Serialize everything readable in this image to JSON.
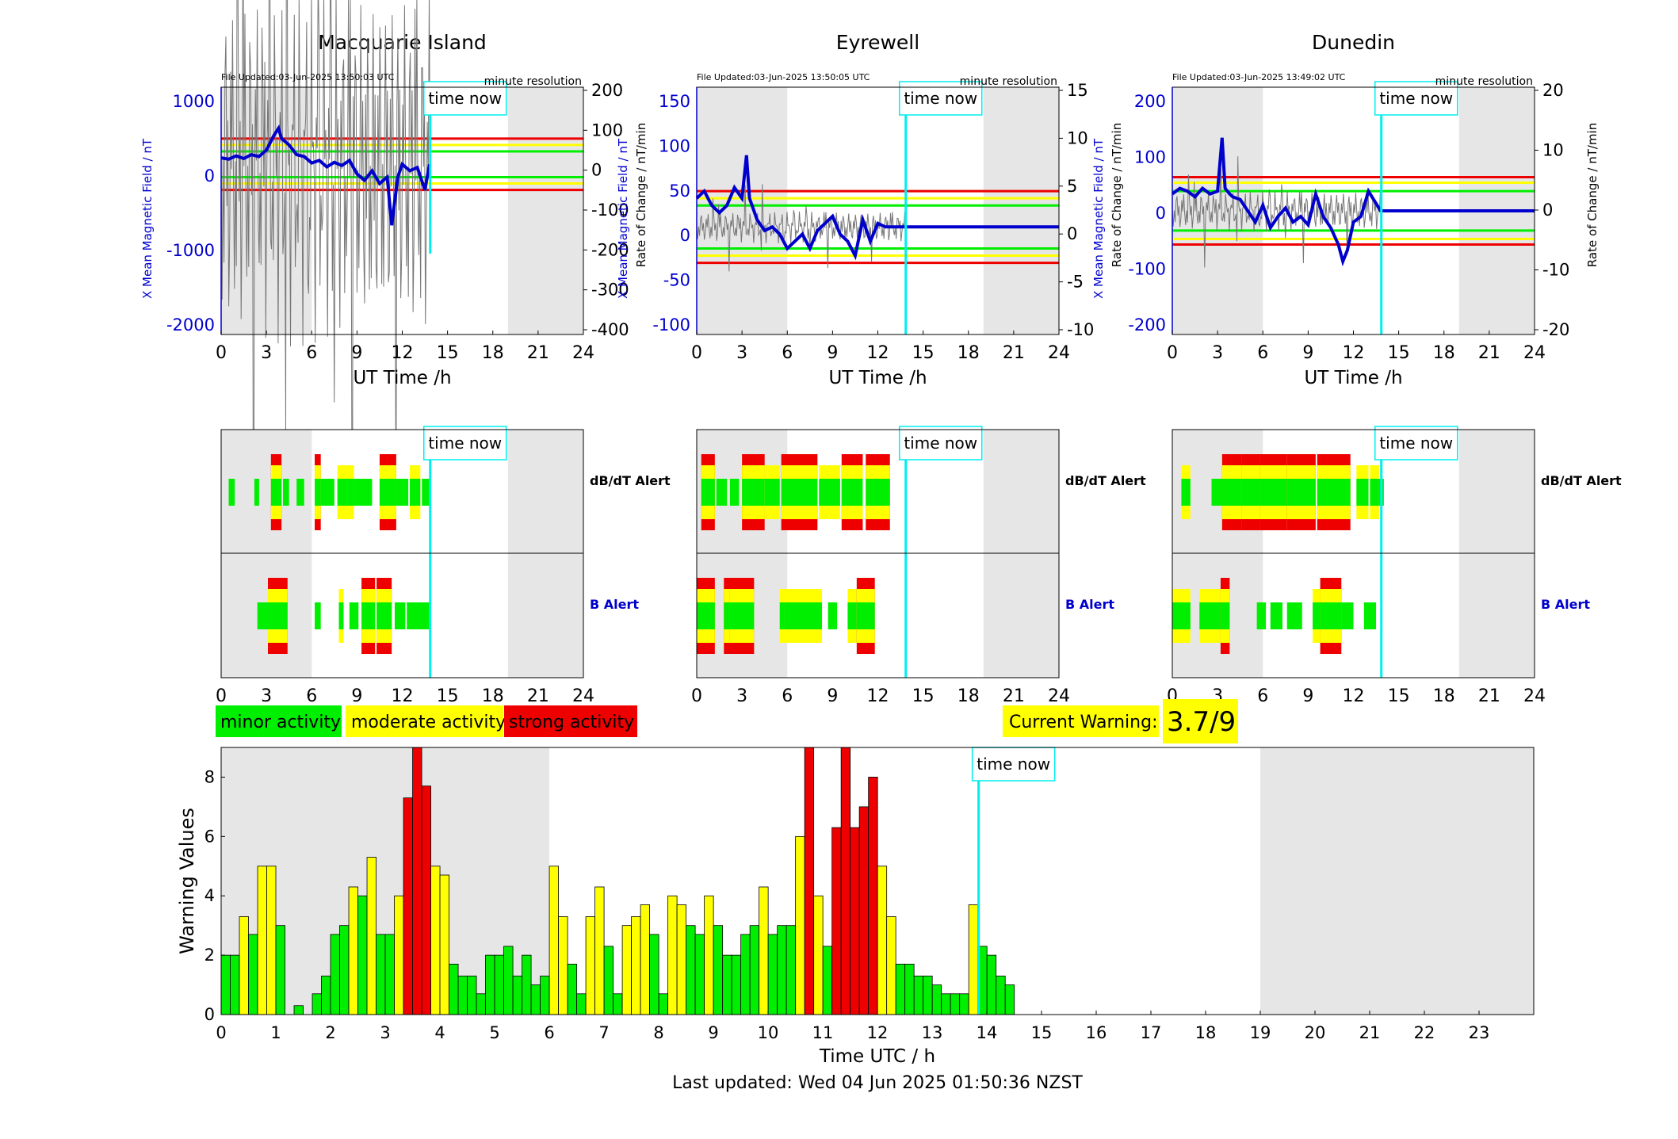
{
  "colors": {
    "minor": "#00ee00",
    "moderate": "#ffff00",
    "strong": "#ee0000",
    "field_line": "#0000cc",
    "time_now": "#00eeee",
    "night_shade": "#e6e6e6",
    "axis": "#000000"
  },
  "stations": [
    {
      "name": "Macquarie Island",
      "file_updated": "File Updated:03-Jun-2025 13:50:03 UTC",
      "resolution": "minute resolution",
      "left_ylabel": "X Mean Magnetic Field / nT",
      "right_ylabel": "Rate of Change / nT/min",
      "xlabel": "UT Time /h",
      "left_yticks": [
        "1000",
        "0",
        "-1000",
        "-2000"
      ],
      "right_yticks": [
        "200",
        "100",
        "0",
        "-100",
        "-200",
        "-300",
        "-400"
      ]
    },
    {
      "name": "Eyrewell",
      "file_updated": "File Updated:03-Jun-2025 13:50:05 UTC",
      "resolution": "minute resolution",
      "left_ylabel": "X Mean Magnetic Field / nT",
      "right_ylabel": "Rate of Change / nT/min",
      "xlabel": "UT Time /h",
      "left_yticks": [
        "150",
        "100",
        "50",
        "0",
        "-50",
        "-100"
      ],
      "right_yticks": [
        "15",
        "10",
        "5",
        "0",
        "-5",
        "-10"
      ]
    },
    {
      "name": "Dunedin",
      "file_updated": "File Updated:03-Jun-2025 13:49:02 UTC",
      "resolution": "minute resolution",
      "left_ylabel": "X Mean Magnetic Field / nT",
      "right_ylabel": "Rate of Change / nT/min",
      "xlabel": "UT Time /h",
      "left_yticks": [
        "200",
        "100",
        "0",
        "-100",
        "-200"
      ],
      "right_yticks": [
        "20",
        "10",
        "0",
        "-10",
        "-20"
      ]
    }
  ],
  "hour_ticks": [
    "0",
    "3",
    "6",
    "9",
    "12",
    "15",
    "18",
    "21",
    "24"
  ],
  "time_now_label": "time now",
  "alert_labels": {
    "dbdt": "dB/dT Alert",
    "b": "B Alert"
  },
  "legend": {
    "minor": "minor activity",
    "moderate": "moderate activity",
    "strong": "strong activity"
  },
  "current_warning": {
    "label": "Current Warning:",
    "value": "3.7/9"
  },
  "bottom": {
    "ylabel": "Warning Values",
    "xlabel": "Time UTC / h",
    "yticks": [
      "0",
      "2",
      "4",
      "6",
      "8"
    ],
    "xticks": [
      "0",
      "1",
      "2",
      "3",
      "4",
      "5",
      "6",
      "7",
      "8",
      "9",
      "10",
      "11",
      "12",
      "13",
      "14",
      "15",
      "16",
      "17",
      "18",
      "19",
      "20",
      "21",
      "22",
      "23"
    ]
  },
  "footer": "Last updated: Wed 04 Jun 2025 01:50:36 NZST",
  "chart_data": [
    {
      "type": "line",
      "title": "Macquarie Island",
      "xlabel": "UT Time /h",
      "ylabel": "X Mean Magnetic Field / nT",
      "y2label": "Rate of Change / nT/min",
      "xlim": [
        0,
        24
      ],
      "ylim": [
        -2650,
        1200
      ],
      "y2lim": [
        -440,
        200
      ],
      "time_now": 13.85,
      "night_shading": [
        [
          0,
          6
        ],
        [
          19,
          24
        ]
      ],
      "threshold_field": {
        "green": 200,
        "yellow": 300,
        "red": 400
      },
      "x": [
        0,
        0.5,
        1,
        1.5,
        2,
        2.5,
        3,
        3.5,
        3.8,
        4,
        4.5,
        5,
        5.5,
        6,
        6.5,
        7,
        7.5,
        8,
        8.5,
        9,
        9.5,
        10,
        10.5,
        11,
        11.3,
        11.7,
        12,
        12.5,
        13,
        13.5,
        13.8
      ],
      "field": [
        100,
        80,
        130,
        90,
        150,
        120,
        220,
        450,
        560,
        400,
        300,
        150,
        120,
        20,
        60,
        -40,
        30,
        -20,
        60,
        -150,
        -250,
        -100,
        -300,
        -200,
        -950,
        -200,
        0,
        -100,
        -50,
        -400,
        0
      ]
    },
    {
      "type": "line",
      "title": "Eyrewell",
      "xlabel": "UT Time /h",
      "ylabel": "X Mean Magnetic Field / nT",
      "y2label": "Rate of Change / nT/min",
      "xlim": [
        0,
        24
      ],
      "ylim": [
        -150,
        195
      ],
      "y2lim": [
        -15,
        19.5
      ],
      "time_now": 13.85,
      "night_shading": [
        [
          0,
          6
        ],
        [
          19,
          24
        ]
      ],
      "threshold_field": {
        "green": 30,
        "yellow": 40,
        "red": 50
      },
      "x": [
        0,
        0.5,
        1,
        1.5,
        2,
        2.5,
        3,
        3.3,
        3.5,
        4,
        4.5,
        5,
        5.5,
        6,
        6.5,
        7,
        7.5,
        8,
        8.5,
        9,
        9.5,
        10,
        10.5,
        11,
        11.5,
        12,
        12.5,
        13,
        13.8,
        24
      ],
      "field": [
        40,
        50,
        30,
        20,
        30,
        55,
        40,
        100,
        40,
        10,
        -5,
        0,
        -10,
        -30,
        -20,
        -10,
        -30,
        -5,
        5,
        15,
        -10,
        -20,
        -40,
        10,
        -20,
        5,
        0,
        0,
        0,
        0
      ],
      "series_after_now": 0
    },
    {
      "type": "line",
      "title": "Dunedin",
      "xlabel": "UT Time /h",
      "ylabel": "X Mean Magnetic Field / nT",
      "y2label": "Rate of Change / nT/min",
      "xlim": [
        0,
        24
      ],
      "ylim": [
        -220,
        220
      ],
      "y2lim": [
        -22,
        22
      ],
      "time_now": 13.85,
      "night_shading": [
        [
          0,
          6
        ],
        [
          19,
          24
        ]
      ],
      "threshold_field": {
        "green": 35,
        "yellow": 50,
        "red": 60
      },
      "x": [
        0,
        0.5,
        1,
        1.5,
        2,
        2.5,
        3,
        3.3,
        3.5,
        3.8,
        4,
        4.5,
        5,
        5.5,
        6,
        6.5,
        7,
        7.5,
        8,
        8.5,
        9,
        9.5,
        10,
        10.5,
        11,
        11.3,
        11.6,
        12,
        12.5,
        13,
        13.8,
        24
      ],
      "field": [
        30,
        40,
        35,
        25,
        40,
        30,
        35,
        130,
        40,
        30,
        25,
        20,
        0,
        -20,
        10,
        -30,
        -10,
        5,
        -20,
        -10,
        -25,
        30,
        -10,
        -30,
        -60,
        -90,
        -70,
        -20,
        -10,
        35,
        0,
        0
      ],
      "series_after_now": 0
    },
    {
      "type": "bar",
      "title": "",
      "xlabel": "Time UTC / h",
      "ylabel": "Warning Values",
      "xlim": [
        0,
        24
      ],
      "ylim": [
        0,
        9
      ],
      "time_now": 13.85,
      "night_shading": [
        [
          0,
          6
        ],
        [
          19,
          24
        ]
      ],
      "bin_width_h": 0.1667,
      "values": [
        2,
        2,
        3.3,
        2.7,
        5,
        5,
        3,
        0,
        0.3,
        0,
        0.7,
        1.3,
        2.7,
        3,
        4.3,
        4,
        5.3,
        2.7,
        2.7,
        4,
        7.3,
        9,
        7.7,
        5,
        4.7,
        1.7,
        1.3,
        1.3,
        0.7,
        2,
        2,
        2.3,
        1.3,
        2,
        1,
        1.3,
        5,
        3.3,
        1.7,
        0.7,
        3.3,
        4.3,
        2.3,
        0.7,
        3,
        3.3,
        3.7,
        2.7,
        0.7,
        4,
        3.7,
        3,
        2.7,
        4,
        3,
        2,
        2,
        2.7,
        3,
        4.3,
        2.7,
        3,
        3,
        6,
        10.3,
        4,
        2.3,
        6.3,
        9,
        6.3,
        7,
        8,
        5,
        3.3,
        1.7,
        1.7,
        1.3,
        1.3,
        1,
        0.7,
        0.7,
        0.7,
        3.7,
        2.3,
        2,
        1.3,
        1
      ],
      "levels": [
        "g",
        "g",
        "y",
        "g",
        "y",
        "y",
        "g",
        "g",
        "g",
        "g",
        "g",
        "g",
        "g",
        "g",
        "y",
        "g",
        "y",
        "g",
        "g",
        "y",
        "r",
        "r",
        "r",
        "y",
        "y",
        "g",
        "g",
        "g",
        "g",
        "g",
        "g",
        "g",
        "g",
        "g",
        "g",
        "g",
        "y",
        "y",
        "g",
        "g",
        "y",
        "y",
        "g",
        "g",
        "y",
        "y",
        "y",
        "g",
        "g",
        "y",
        "y",
        "g",
        "g",
        "y",
        "g",
        "g",
        "g",
        "g",
        "g",
        "y",
        "g",
        "g",
        "g",
        "y",
        "r",
        "y",
        "g",
        "r",
        "r",
        "r",
        "r",
        "r",
        "y",
        "y",
        "g",
        "g",
        "g",
        "g",
        "g",
        "g",
        "g",
        "g",
        "y",
        "g",
        "g",
        "g",
        "g"
      ]
    }
  ]
}
